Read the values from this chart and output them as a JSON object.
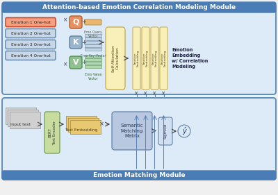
{
  "title_top": "Attention-based Emotion Correlation Modeling Module",
  "title_bottom": "Emotion Matching Module",
  "fig_bg": "#f0f0f0",
  "panel_bg": "#ddeaf8",
  "panel_border": "#5a8fbe",
  "header_bg": "#4a7db5",
  "header_fg": "white",
  "emotion_labels": [
    "Emotion 1 One-hot",
    "Emotion 2 One-hot",
    "Emotion 3 One-hot",
    "Emotion 4 One-hot"
  ],
  "emo1_fc": "#f5a080",
  "emo1_ec": "#d04828",
  "emo234_fc": "#c8d8e8",
  "emo234_ec": "#7090b0",
  "q_fc": "#e89060",
  "q_ec": "#b06030",
  "k_fc": "#9ab5cc",
  "k_ec": "#5a80a0",
  "v_fc": "#90c090",
  "v_ec": "#509050",
  "q_vec_fc": "#e8b870",
  "q_vec_ec": "#b08840",
  "k_vec_fc": "#c0d8e8",
  "k_vec_ec": "#8090a8",
  "v_vec_fc": "#b0d8b0",
  "v_vec_ec": "#70a070",
  "self_attn_fc": "#f8f0b8",
  "self_attn_ec": "#c8a840",
  "emb_fc": "#f8f0b8",
  "emb_ec": "#c8a840",
  "bert_fc": "#c8dca0",
  "bert_ec": "#70a050",
  "input_fc": "#d0d0d0",
  "input_ec": "#a0a0a0",
  "textemb_fc": "#e8c870",
  "textemb_ec": "#b09040",
  "semantic_fc": "#b8c8e0",
  "semantic_ec": "#6080a8",
  "sigmoid_fc": "#d0e0f0",
  "sigmoid_ec": "#6080a8",
  "output_fc": "#d8e8f5",
  "output_ec": "#6080a8",
  "arrow_c": "#404040",
  "line_c": "#5a80b8",
  "cross_c": "#404040"
}
